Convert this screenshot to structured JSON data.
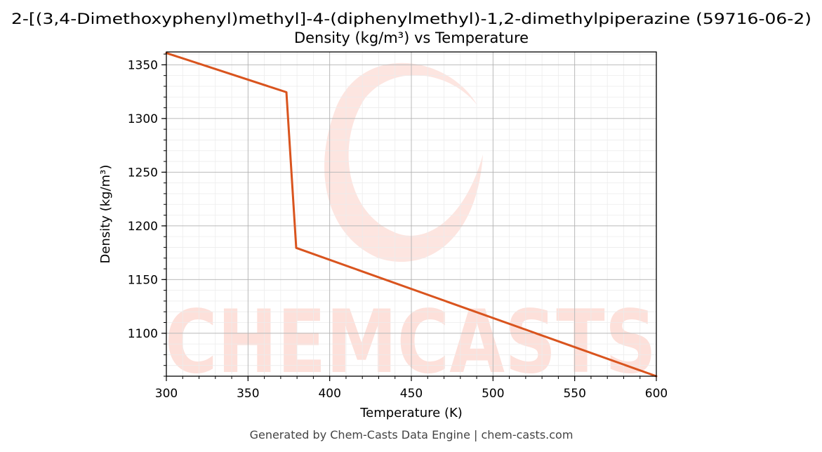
{
  "chart_data": {
    "type": "line",
    "title": "2-[(3,4-Dimethoxyphenyl)methyl]-4-(diphenylmethyl)-1,2-dimethylpiperazine (59716-06-2)",
    "subtitle": "Density (kg/m³) vs Temperature",
    "xlabel": "Temperature (K)",
    "ylabel": "Density (kg/m³)",
    "xlim": [
      300,
      600
    ],
    "ylim": [
      1060,
      1362
    ],
    "xticks": [
      300,
      350,
      400,
      450,
      500,
      550,
      600
    ],
    "yticks": [
      1100,
      1150,
      1200,
      1250,
      1300,
      1350
    ],
    "grid": true,
    "legend": "none",
    "series": [
      {
        "color": "#d9541e",
        "x": [
          300,
          373.5,
          379.5,
          600
        ],
        "y": [
          1361,
          1324.5,
          1179.5,
          1060
        ]
      }
    ]
  },
  "watermark": {
    "text": "CHEMCASTS",
    "color": "#fde0da"
  },
  "footer": {
    "text": "Generated by Chem-Casts Data Engine | chem-casts.com"
  }
}
